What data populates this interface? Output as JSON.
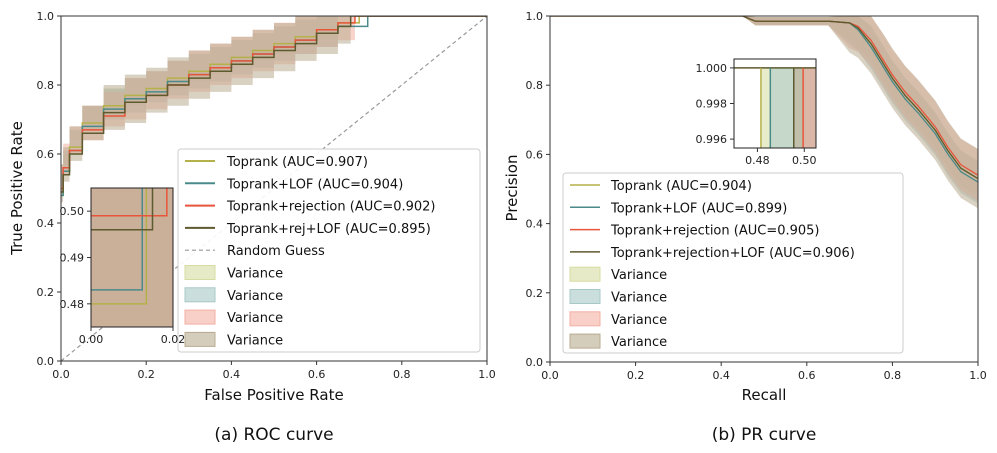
{
  "colors": {
    "toprank": "#b5b14a",
    "lof": "#4a8a8a",
    "rejection": "#e8553b",
    "rejlof": "#5d5a2f",
    "var_toprank": "#d7dca0",
    "var_lof": "#a8c8c8",
    "var_rejection": "#f3b0a4",
    "var_rejlof": "#b9ab90",
    "random": "#999999"
  },
  "chart_data": [
    {
      "type": "line",
      "title": "(a) ROC curve",
      "xlabel": "False Positive Rate",
      "ylabel": "True Positive Rate",
      "xlim": [
        0,
        1
      ],
      "ylim": [
        0,
        1
      ],
      "xticks": [
        "0.0",
        "0.2",
        "0.4",
        "0.6",
        "0.8",
        "1.0"
      ],
      "yticks": [
        "0.0",
        "0.2",
        "0.4",
        "0.6",
        "0.8",
        "1.0"
      ],
      "series": [
        {
          "key": "toprank",
          "name": "Toprank (AUC=0.907)",
          "color_key": "toprank",
          "x": [
            0,
            0.005,
            0.02,
            0.05,
            0.1,
            0.15,
            0.2,
            0.25,
            0.3,
            0.35,
            0.4,
            0.45,
            0.5,
            0.55,
            0.6,
            0.65,
            0.7,
            1.0
          ],
          "y": [
            0.48,
            0.55,
            0.62,
            0.69,
            0.74,
            0.77,
            0.79,
            0.82,
            0.84,
            0.86,
            0.88,
            0.9,
            0.92,
            0.94,
            0.96,
            0.98,
            1.0,
            1.0
          ]
        },
        {
          "key": "lof",
          "name": "Toprank+LOF (AUC=0.904)",
          "color_key": "lof",
          "x": [
            0,
            0.005,
            0.02,
            0.05,
            0.1,
            0.15,
            0.2,
            0.25,
            0.3,
            0.35,
            0.4,
            0.45,
            0.5,
            0.55,
            0.6,
            0.65,
            0.72,
            1.0
          ],
          "y": [
            0.48,
            0.55,
            0.61,
            0.68,
            0.73,
            0.76,
            0.78,
            0.81,
            0.83,
            0.85,
            0.87,
            0.89,
            0.91,
            0.93,
            0.95,
            0.97,
            1.0,
            1.0
          ]
        },
        {
          "key": "rejection",
          "name": "Toprank+rejection (AUC=0.902)",
          "color_key": "rejection",
          "x": [
            0,
            0.005,
            0.02,
            0.05,
            0.1,
            0.15,
            0.2,
            0.25,
            0.3,
            0.35,
            0.4,
            0.45,
            0.5,
            0.55,
            0.6,
            0.65,
            0.69,
            1.0
          ],
          "y": [
            0.5,
            0.56,
            0.61,
            0.67,
            0.71,
            0.75,
            0.77,
            0.8,
            0.83,
            0.85,
            0.87,
            0.89,
            0.91,
            0.93,
            0.96,
            0.98,
            1.0,
            1.0
          ]
        },
        {
          "key": "rejlof",
          "name": "Toprank+rej+LOF (AUC=0.895)",
          "color_key": "rejlof",
          "x": [
            0,
            0.005,
            0.02,
            0.05,
            0.1,
            0.15,
            0.2,
            0.25,
            0.3,
            0.35,
            0.4,
            0.45,
            0.5,
            0.55,
            0.6,
            0.65,
            0.68,
            1.0
          ],
          "y": [
            0.49,
            0.54,
            0.6,
            0.66,
            0.72,
            0.75,
            0.77,
            0.8,
            0.82,
            0.84,
            0.86,
            0.88,
            0.9,
            0.92,
            0.95,
            0.97,
            1.0,
            1.0
          ]
        }
      ],
      "random_guess": {
        "name": "Random Guess",
        "x": [
          0,
          1
        ],
        "y": [
          0,
          1
        ]
      },
      "variance_labels": [
        "Variance",
        "Variance",
        "Variance",
        "Variance"
      ],
      "inset": {
        "xlim": [
          0.0,
          0.02
        ],
        "ylim": [
          0.475,
          0.505
        ],
        "xticks": [
          "0.00",
          "0.02"
        ],
        "yticks": [
          "0.48",
          "0.49",
          "0.50"
        ],
        "steps": [
          {
            "key": "toprank",
            "y0": 0.48,
            "xstep": 0.0135
          },
          {
            "key": "lof",
            "y0": 0.483,
            "xstep": 0.0125
          },
          {
            "key": "rejection",
            "y0": 0.499,
            "xstep": 0.0185
          },
          {
            "key": "rejlof",
            "y0": 0.496,
            "xstep": 0.015
          }
        ]
      },
      "legend_position": "center-right"
    },
    {
      "type": "line",
      "title": "(b) PR curve",
      "xlabel": "Recall",
      "ylabel": "Precision",
      "xlim": [
        0,
        1
      ],
      "ylim": [
        0,
        1
      ],
      "xticks": [
        "0.0",
        "0.2",
        "0.4",
        "0.6",
        "0.8",
        "1.0"
      ],
      "yticks": [
        "0.0",
        "0.2",
        "0.4",
        "0.6",
        "0.8",
        "1.0"
      ],
      "series": [
        {
          "key": "toprank",
          "name": "Toprank (AUC=0.904)",
          "color_key": "toprank",
          "x": [
            0.0,
            0.45,
            0.48,
            0.55,
            0.6,
            0.65,
            0.7,
            0.72,
            0.75,
            0.78,
            0.8,
            0.83,
            0.86,
            0.9,
            0.93,
            0.96,
            1.0
          ],
          "y": [
            1.0,
            1.0,
            0.985,
            0.985,
            0.985,
            0.985,
            0.98,
            0.96,
            0.92,
            0.86,
            0.82,
            0.77,
            0.73,
            0.67,
            0.61,
            0.56,
            0.53
          ]
        },
        {
          "key": "lof",
          "name": "Toprank+LOF (AUC=0.899)",
          "color_key": "lof",
          "x": [
            0.0,
            0.45,
            0.48,
            0.55,
            0.6,
            0.65,
            0.7,
            0.72,
            0.75,
            0.78,
            0.8,
            0.83,
            0.86,
            0.9,
            0.93,
            0.96,
            1.0
          ],
          "y": [
            1.0,
            1.0,
            0.985,
            0.985,
            0.985,
            0.985,
            0.98,
            0.96,
            0.91,
            0.85,
            0.81,
            0.76,
            0.72,
            0.66,
            0.6,
            0.55,
            0.52
          ]
        },
        {
          "key": "rejection",
          "name": "Toprank+rejection (AUC=0.905)",
          "color_key": "rejection",
          "x": [
            0.0,
            0.45,
            0.48,
            0.55,
            0.6,
            0.65,
            0.7,
            0.72,
            0.75,
            0.78,
            0.8,
            0.83,
            0.86,
            0.9,
            0.93,
            0.96,
            1.0
          ],
          "y": [
            1.0,
            1.0,
            0.985,
            0.985,
            0.985,
            0.985,
            0.98,
            0.97,
            0.93,
            0.87,
            0.83,
            0.78,
            0.74,
            0.68,
            0.62,
            0.57,
            0.54
          ]
        },
        {
          "key": "rejlof",
          "name": "Toprank+rejection+LOF (AUC=0.906)",
          "color_key": "rejlof",
          "x": [
            0.0,
            0.45,
            0.48,
            0.55,
            0.6,
            0.65,
            0.7,
            0.72,
            0.75,
            0.78,
            0.8,
            0.83,
            0.86,
            0.9,
            0.93,
            0.96,
            1.0
          ],
          "y": [
            1.0,
            1.0,
            0.985,
            0.985,
            0.985,
            0.985,
            0.98,
            0.965,
            0.92,
            0.86,
            0.82,
            0.77,
            0.73,
            0.67,
            0.61,
            0.56,
            0.53
          ]
        }
      ],
      "variance_labels": [
        "Variance",
        "Variance",
        "Variance",
        "Variance"
      ],
      "inset": {
        "xlim": [
          0.47,
          0.505
        ],
        "ylim": [
          0.9955,
          1.0005
        ],
        "xticks": [
          "0.48",
          "0.50"
        ],
        "yticks": [
          "1.000",
          "0.998",
          "0.996"
        ],
        "ytick_values": [
          1.0,
          0.998,
          0.996
        ],
        "xtick_values": [
          0.48,
          0.5
        ],
        "bands": [
          {
            "key": "toprank",
            "x": 0.4815
          },
          {
            "key": "lof",
            "x": 0.4855
          },
          {
            "key": "rejlof",
            "x": 0.4955
          },
          {
            "key": "rejection",
            "x": 0.4995
          }
        ]
      },
      "legend_position": "center-left"
    }
  ]
}
